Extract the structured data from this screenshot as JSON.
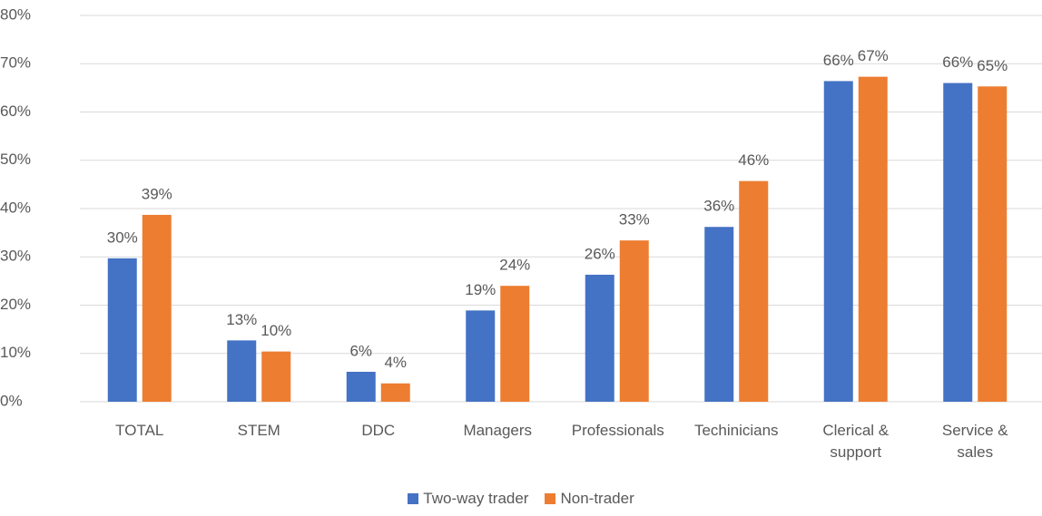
{
  "chart_data": {
    "type": "bar",
    "categories": [
      "TOTAL",
      "STEM",
      "DDC",
      "Managers",
      "Professionals",
      "Techinicians",
      "Clerical & support",
      "Service & sales"
    ],
    "series": [
      {
        "name": "Two-way trader",
        "color": "#4472c4",
        "values": [
          29.7,
          12.7,
          6.2,
          18.9,
          26.3,
          36.2,
          66.4,
          66.0
        ],
        "value_labels": [
          "30%",
          "13%",
          "6%",
          "19%",
          "26%",
          "36%",
          "66%",
          "66%"
        ]
      },
      {
        "name": "Non-trader",
        "color": "#ed7d31",
        "values": [
          38.7,
          10.4,
          3.8,
          24.0,
          33.4,
          45.7,
          67.3,
          65.3
        ],
        "value_labels": [
          "39%",
          "10%",
          "4%",
          "24%",
          "33%",
          "46%",
          "67%",
          "65%"
        ]
      }
    ],
    "ylim": [
      0,
      80
    ],
    "yticks": [
      {
        "value": 0,
        "label": "0%"
      },
      {
        "value": 10,
        "label": "10%"
      },
      {
        "value": 20,
        "label": "20%"
      },
      {
        "value": 30,
        "label": "30%"
      },
      {
        "value": 40,
        "label": "40%"
      },
      {
        "value": 50,
        "label": "50%"
      },
      {
        "value": 60,
        "label": "60%"
      },
      {
        "value": 70,
        "label": "70%"
      },
      {
        "value": 80,
        "label": "80%"
      }
    ],
    "grid": true,
    "legend": "bottom"
  }
}
